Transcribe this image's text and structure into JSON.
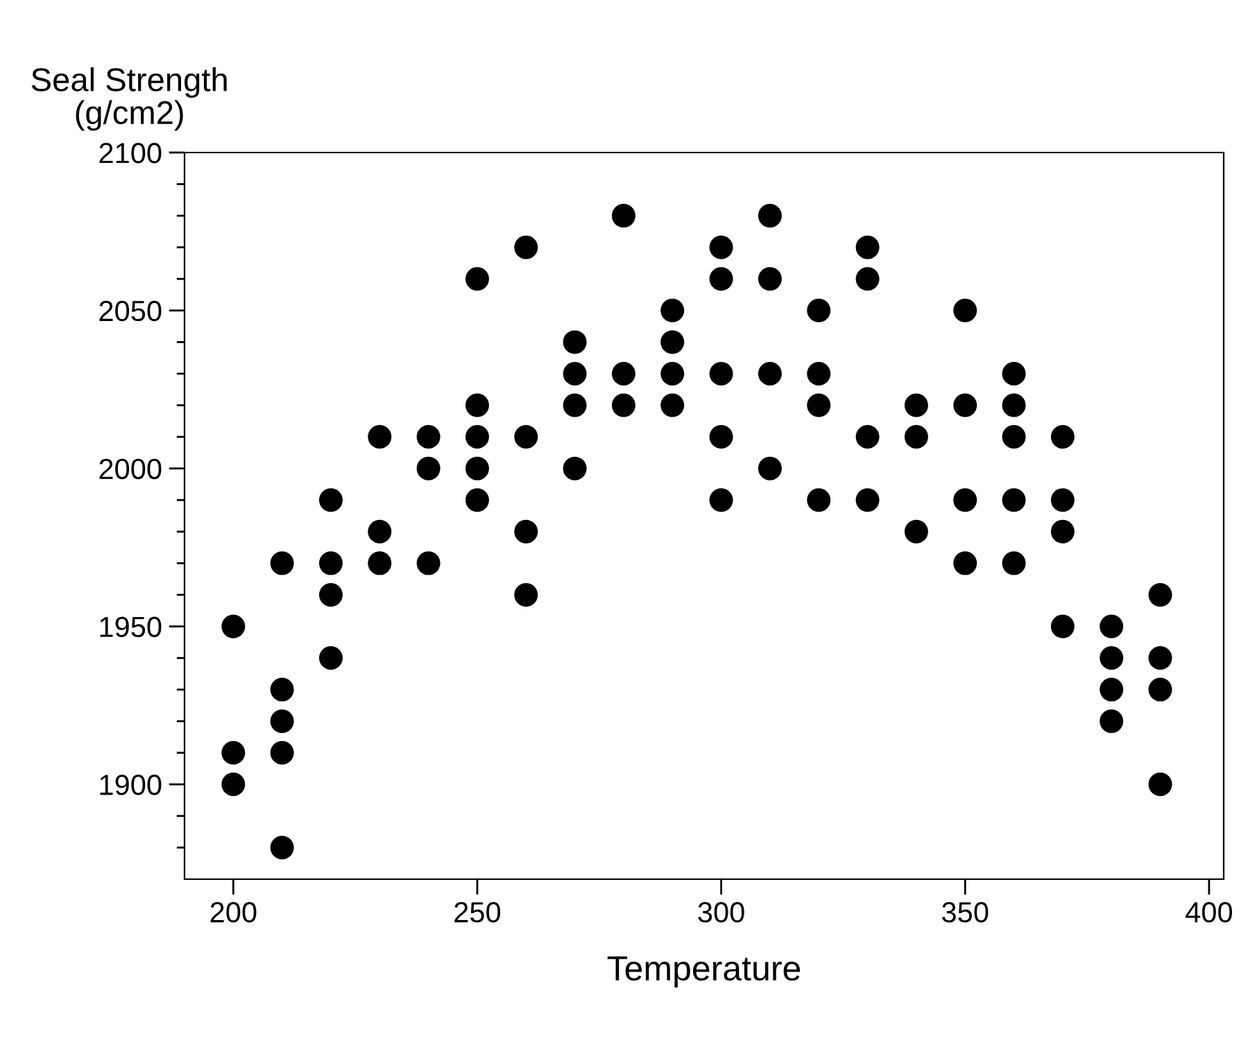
{
  "chart_data": {
    "type": "scatter",
    "ylabel": "Seal Strength\n(g/cm2)",
    "xlabel": "Temperature",
    "marker": "circle",
    "series": [
      {
        "color": "#000000",
        "x": [
          200,
          200,
          200,
          210,
          210,
          210,
          210,
          210,
          220,
          220,
          220,
          220,
          230,
          230,
          230,
          240,
          240,
          240,
          250,
          250,
          250,
          250,
          250,
          260,
          260,
          260,
          260,
          270,
          270,
          270,
          270,
          280,
          280,
          280,
          290,
          290,
          290,
          290,
          300,
          300,
          300,
          300,
          300,
          310,
          310,
          310,
          310,
          320,
          320,
          320,
          320,
          330,
          330,
          330,
          330,
          340,
          340,
          340,
          350,
          350,
          350,
          350,
          360,
          360,
          360,
          360,
          360,
          370,
          370,
          370,
          370,
          380,
          380,
          380,
          380,
          390,
          390,
          390,
          390
        ],
        "values": [
          1950,
          1910,
          1900,
          1970,
          1930,
          1920,
          1910,
          1880,
          1990,
          1970,
          1960,
          1940,
          2010,
          1980,
          1970,
          2010,
          2000,
          1970,
          2060,
          2020,
          2010,
          2000,
          1990,
          2070,
          2010,
          1980,
          1960,
          2040,
          2030,
          2020,
          2000,
          2080,
          2030,
          2020,
          2050,
          2040,
          2030,
          2020,
          2070,
          2060,
          2030,
          2010,
          1990,
          2080,
          2060,
          2030,
          2000,
          2050,
          2030,
          2020,
          1990,
          2070,
          2060,
          2010,
          1990,
          2020,
          2010,
          1980,
          2050,
          2020,
          1990,
          1970,
          2030,
          2020,
          2010,
          1990,
          1970,
          2010,
          1990,
          1980,
          1950,
          1950,
          1940,
          1930,
          1920,
          1960,
          1940,
          1930,
          1900
        ]
      }
    ],
    "xlim": [
      190,
      403
    ],
    "xticks": [
      200,
      250,
      300,
      350,
      400
    ],
    "ylim": [
      1870,
      2100
    ],
    "yticks": [
      {
        "value": 1880,
        "label": null
      },
      {
        "value": 1890,
        "label": null
      },
      1900,
      {
        "value": 1910,
        "label": null
      },
      {
        "value": 1920,
        "label": null
      },
      {
        "value": 1930,
        "label": null
      },
      {
        "value": 1940,
        "label": null
      },
      1950,
      {
        "value": 1960,
        "label": null
      },
      {
        "value": 1970,
        "label": null
      },
      {
        "value": 1980,
        "label": null
      },
      {
        "value": 1990,
        "label": null
      },
      2000,
      {
        "value": 2010,
        "label": null
      },
      {
        "value": 2020,
        "label": null
      },
      {
        "value": 2030,
        "label": null
      },
      {
        "value": 2040,
        "label": null
      },
      2050,
      {
        "value": 2060,
        "label": null
      },
      {
        "value": 2070,
        "label": null
      },
      {
        "value": 2080,
        "label": null
      },
      {
        "value": 2090,
        "label": null
      },
      2100
    ]
  }
}
